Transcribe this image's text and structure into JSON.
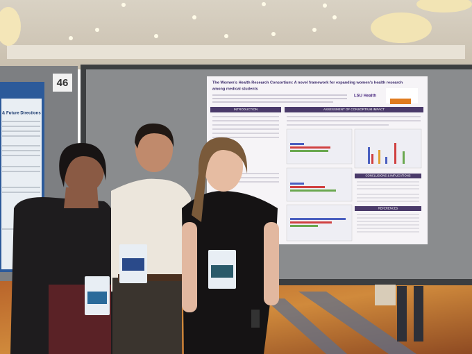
{
  "booth_number": "46",
  "poster": {
    "title_lines": [
      "The Women's Health Research Consortium: A novel framework for expanding women's health research",
      "among medical students"
    ],
    "institution": "LSU Health",
    "sections": [
      "INTRODUCTION",
      "ASSESSMENT OF CONSORTIUM IMPACT",
      "CONCLUSIONS & IMPLICATIONS",
      "REFERENCES"
    ]
  },
  "left_poster": {
    "heading": "& Future Directions"
  }
}
